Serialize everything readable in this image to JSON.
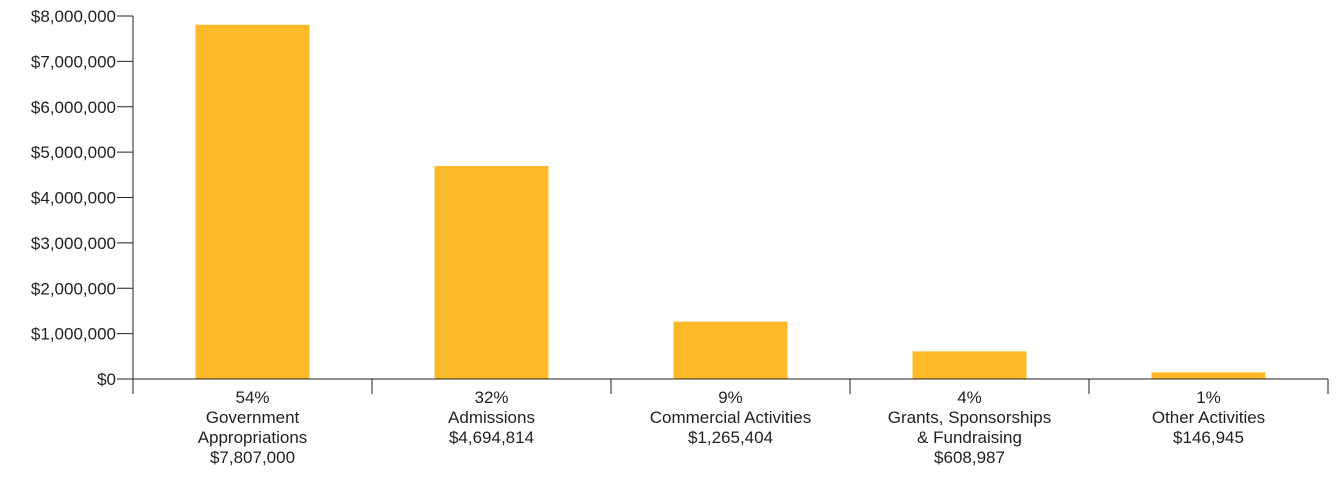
{
  "colors": {
    "bar": "#fbb829",
    "axis": "#231f20",
    "text": "#231f20"
  },
  "chart_data": {
    "type": "bar",
    "title": "",
    "xlabel": "",
    "ylabel": "",
    "ylim": [
      0,
      8000000
    ],
    "y_ticks": [
      0,
      1000000,
      2000000,
      3000000,
      4000000,
      5000000,
      6000000,
      7000000,
      8000000
    ],
    "y_tick_labels": [
      "$0",
      "$1,000,000",
      "$2,000,000",
      "$3,000,000",
      "$4,000,000",
      "$5,000,000",
      "$6,000,000",
      "$7,000,000",
      "$8,000,000"
    ],
    "grid": false,
    "categories": [
      "Government Appropriations",
      "Admissions",
      "Commercial Activities",
      "Grants, Sponsorships & Fundraising",
      "Other Activities"
    ],
    "values": [
      7807000,
      4694814,
      1265404,
      608987,
      146945
    ],
    "category_labels": [
      [
        "54%",
        "Government",
        "Appropriations",
        "$7,807,000"
      ],
      [
        "32%",
        "Admissions",
        "$4,694,814"
      ],
      [
        "9%",
        "Commercial Activities",
        "$1,265,404"
      ],
      [
        "4%",
        "Grants, Sponsorships",
        "& Fundraising",
        "$608,987"
      ],
      [
        "1%",
        "Other Activities",
        "$146,945"
      ]
    ]
  }
}
